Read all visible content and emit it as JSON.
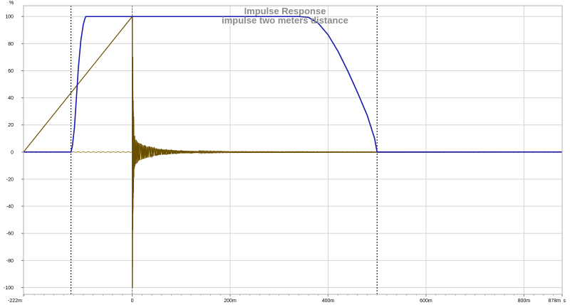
{
  "chart_data": {
    "type": "line",
    "title": "Impulse Response",
    "subtitle": "impulse two meters distance",
    "ylabel": "%",
    "xunit": "s",
    "xlim": [
      -222,
      878
    ],
    "ylim": [
      -105,
      108
    ],
    "grid": true,
    "x_ticks": [
      {
        "value": -222,
        "label": "-222m"
      },
      {
        "value": 0,
        "label": "0"
      },
      {
        "value": 200,
        "label": "200m"
      },
      {
        "value": 400,
        "label": "400m"
      },
      {
        "value": 600,
        "label": "600m"
      },
      {
        "value": 800,
        "label": "800m"
      },
      {
        "value": 878,
        "label": "878m"
      }
    ],
    "y_ticks": [
      -100,
      -80,
      -60,
      -40,
      -20,
      0,
      20,
      40,
      60,
      80,
      100
    ],
    "markers": [
      {
        "name": "window-start",
        "x": -125,
        "color": "#000000"
      },
      {
        "name": "impulse-peak",
        "x": 0,
        "color": "#e03030"
      },
      {
        "name": "window-end",
        "x": 500,
        "color": "#000000"
      }
    ],
    "series": [
      {
        "role": "window",
        "color": "#1a1aaa",
        "x": [
          -222,
          -125,
          -122,
          -118,
          -114,
          -110,
          -105,
          -100,
          -97,
          -95,
          -90,
          0,
          200,
          340,
          360,
          380,
          400,
          420,
          440,
          460,
          480,
          495,
          500,
          878
        ],
        "y": [
          0,
          0,
          5,
          18,
          40,
          62,
          82,
          94,
          98,
          100,
          100,
          100,
          100,
          100,
          99.4,
          95,
          86.5,
          74.5,
          60,
          44,
          27,
          10,
          0,
          0
        ]
      },
      {
        "role": "impulse",
        "color": "#6b4e00",
        "x": [
          -222,
          0,
          0.5,
          1,
          1.5,
          2,
          2.5,
          3,
          4,
          5,
          6,
          8,
          10,
          12,
          15,
          18,
          22,
          26,
          30,
          35,
          40,
          45,
          50,
          60,
          70,
          80,
          90,
          100,
          120,
          140,
          160,
          180,
          200,
          878
        ],
        "y": [
          0,
          100,
          -100,
          70,
          -45,
          38,
          -30,
          26,
          -12,
          12,
          -9,
          9,
          -8,
          7,
          -6,
          6,
          -5,
          5,
          -4,
          4,
          -3.5,
          3,
          -2.5,
          2,
          -1.8,
          1.5,
          -1.2,
          1,
          -0.8,
          0.6,
          -0.5,
          0.4,
          -0.3,
          0
        ]
      }
    ]
  }
}
